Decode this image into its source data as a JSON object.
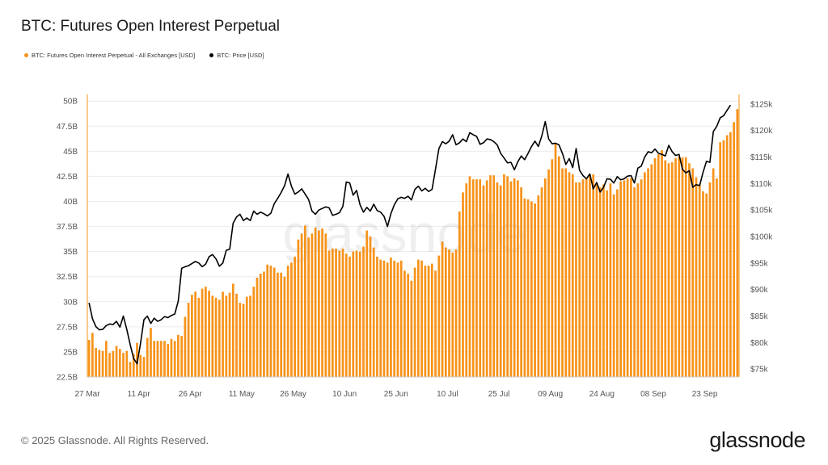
{
  "header": {
    "title": "BTC: Futures Open Interest Perpetual"
  },
  "legend": [
    {
      "label": "BTC: Futures Open Interest Perpetual - All Exchanges [USD]",
      "color": "#f7931a"
    },
    {
      "label": "BTC: Price [USD]",
      "color": "#000000"
    }
  ],
  "watermark": "glassnode",
  "footer": {
    "copyright": "© 2025 Glassnode. All Rights Reserved.",
    "brand": "glassnode"
  },
  "chart_data": {
    "type": "bar",
    "title": "BTC: Futures Open Interest Perpetual",
    "x_start_date": "2025-03-27",
    "x_tick_labels": [
      "27 Mar",
      "11 Apr",
      "26 Apr",
      "11 May",
      "26 May",
      "10 Jun",
      "25 Jun",
      "10 Jul",
      "25 Jul",
      "09 Aug",
      "24 Aug",
      "08 Sep",
      "23 Sep"
    ],
    "y_left": {
      "ylim": [
        22.5,
        50.5
      ],
      "tick_values": [
        22.5,
        25,
        27.5,
        30,
        32.5,
        35,
        37.5,
        40,
        42.5,
        45,
        47.5,
        50
      ],
      "tick_labels": [
        "22.5B",
        "25B",
        "27.5B",
        "30B",
        "32.5B",
        "35B",
        "37.5B",
        "40B",
        "42.5B",
        "45B",
        "47.5B",
        "50B"
      ]
    },
    "y_right": {
      "ylim": [
        73500,
        126500
      ],
      "tick_values": [
        75000,
        80000,
        85000,
        90000,
        95000,
        100000,
        105000,
        110000,
        115000,
        120000,
        125000
      ],
      "tick_labels": [
        "$75k",
        "$80k",
        "$85k",
        "$90k",
        "$95k",
        "$100k",
        "$105k",
        "$110k",
        "$115k",
        "$120k",
        "$125k"
      ]
    },
    "series": [
      {
        "name": "BTC: Futures Open Interest Perpetual - All Exchanges [USD]",
        "type": "bar",
        "axis": "left",
        "color": "#f7931a",
        "unit": "B USD",
        "values": [
          26.2,
          26.9,
          25.4,
          25.2,
          25.1,
          26.1,
          24.9,
          25.1,
          25.6,
          25.3,
          24.9,
          25.1,
          24.0,
          24.8,
          25.9,
          24.7,
          24.5,
          26.4,
          27.4,
          26.1,
          26.1,
          26.1,
          26.1,
          25.8,
          26.3,
          26.1,
          26.7,
          26.6,
          28.5,
          29.9,
          30.7,
          31.0,
          30.4,
          31.3,
          31.5,
          31.1,
          30.6,
          30.4,
          30.2,
          31.0,
          30.6,
          30.9,
          31.8,
          30.8,
          29.9,
          29.8,
          30.5,
          30.6,
          31.5,
          32.4,
          32.8,
          33.0,
          33.7,
          33.6,
          33.4,
          32.9,
          32.9,
          32.5,
          33.6,
          33.9,
          34.5,
          36.2,
          36.8,
          37.6,
          36.4,
          36.8,
          37.4,
          37.1,
          37.3,
          36.8,
          35.1,
          35.3,
          35.3,
          35.1,
          35.3,
          34.8,
          34.5,
          35.0,
          35.1,
          35.0,
          35.5,
          37.1,
          36.5,
          35.4,
          34.5,
          34.2,
          34.1,
          33.9,
          34.4,
          34.1,
          33.9,
          34.1,
          33.1,
          32.8,
          32.1,
          33.4,
          34.2,
          34.1,
          33.6,
          33.6,
          33.8,
          33.1,
          34.6,
          36.0,
          35.4,
          35.2,
          34.9,
          35.2,
          39.0,
          40.9,
          41.8,
          42.5,
          42.2,
          42.2,
          42.2,
          41.6,
          42.1,
          42.6,
          42.6,
          41.9,
          41.6,
          42.7,
          42.5,
          42.0,
          42.3,
          42.1,
          41.4,
          40.3,
          40.2,
          40.0,
          39.8,
          40.6,
          41.4,
          42.3,
          43.2,
          44.2,
          45.8,
          44.5,
          43.3,
          43.3,
          42.9,
          42.7,
          41.9,
          41.9,
          42.2,
          42.3,
          42.7,
          42.7,
          41.7,
          41.4,
          41.7,
          41.1,
          41.8,
          40.7,
          41.2,
          42.0,
          42.1,
          42.3,
          42.3,
          41.4,
          41.8,
          42.2,
          42.9,
          43.3,
          43.7,
          44.3,
          44.7,
          45.1,
          44.1,
          43.8,
          43.9,
          44.3,
          44.5,
          44.4,
          44.4,
          43.8,
          43.3,
          42.4,
          41.7,
          41.0,
          40.8,
          41.9,
          43.3,
          42.3,
          45.9,
          46.1,
          46.6,
          46.9,
          47.9,
          49.2
        ]
      },
      {
        "name": "BTC: Price [USD]",
        "type": "line",
        "axis": "right",
        "color": "#000000",
        "unit": "USD",
        "values": [
          87500,
          84500,
          83000,
          82400,
          82500,
          83200,
          83500,
          83400,
          84000,
          82900,
          85000,
          82500,
          79600,
          77000,
          76000,
          79800,
          84300,
          85000,
          83600,
          84600,
          84000,
          84300,
          84900,
          84700,
          85100,
          85400,
          87800,
          94000,
          94300,
          94500,
          94900,
          95300,
          95000,
          94300,
          94800,
          96200,
          96600,
          95800,
          94400,
          95000,
          97400,
          97600,
          102500,
          103700,
          104200,
          103000,
          103500,
          103000,
          104800,
          104200,
          104600,
          104300,
          103900,
          104400,
          106200,
          107200,
          108300,
          109600,
          111800,
          109500,
          108000,
          108400,
          109000,
          108000,
          107000,
          104800,
          104200,
          105000,
          105300,
          105600,
          105400,
          104000,
          104200,
          104500,
          105700,
          110300,
          110100,
          107800,
          108700,
          106000,
          104600,
          105500,
          104800,
          106100,
          104900,
          104600,
          103800,
          101900,
          104300,
          106000,
          107100,
          107400,
          107200,
          107600,
          106900,
          108900,
          109500,
          108600,
          109100,
          108500,
          108900,
          112700,
          116600,
          117900,
          117500,
          118000,
          119200,
          117300,
          117700,
          118400,
          117900,
          119600,
          119200,
          118900,
          117400,
          117700,
          118400,
          118300,
          117900,
          117300,
          115700,
          114800,
          113900,
          114000,
          112600,
          114100,
          115200,
          114500,
          115700,
          117000,
          118000,
          117000,
          119000,
          121700,
          118400,
          117500,
          117600,
          117300,
          115700,
          113600,
          114700,
          113000,
          116600,
          112500,
          111500,
          110900,
          111800,
          109000,
          110200,
          108400,
          109300,
          110900,
          110800,
          110100,
          111300,
          110700,
          110900,
          111400,
          111500,
          110100,
          112900,
          113300,
          115000,
          116000,
          115800,
          116500,
          115700,
          115500,
          115200,
          117200,
          116000,
          115300,
          115500,
          112700,
          112000,
          112400,
          109300,
          109800,
          109600,
          112100,
          114200,
          114000,
          119800,
          120800,
          122400,
          122800,
          123800,
          124800
        ]
      }
    ],
    "grid": {
      "horizontal": true,
      "vertical": false
    },
    "legend_position": "top-left"
  }
}
